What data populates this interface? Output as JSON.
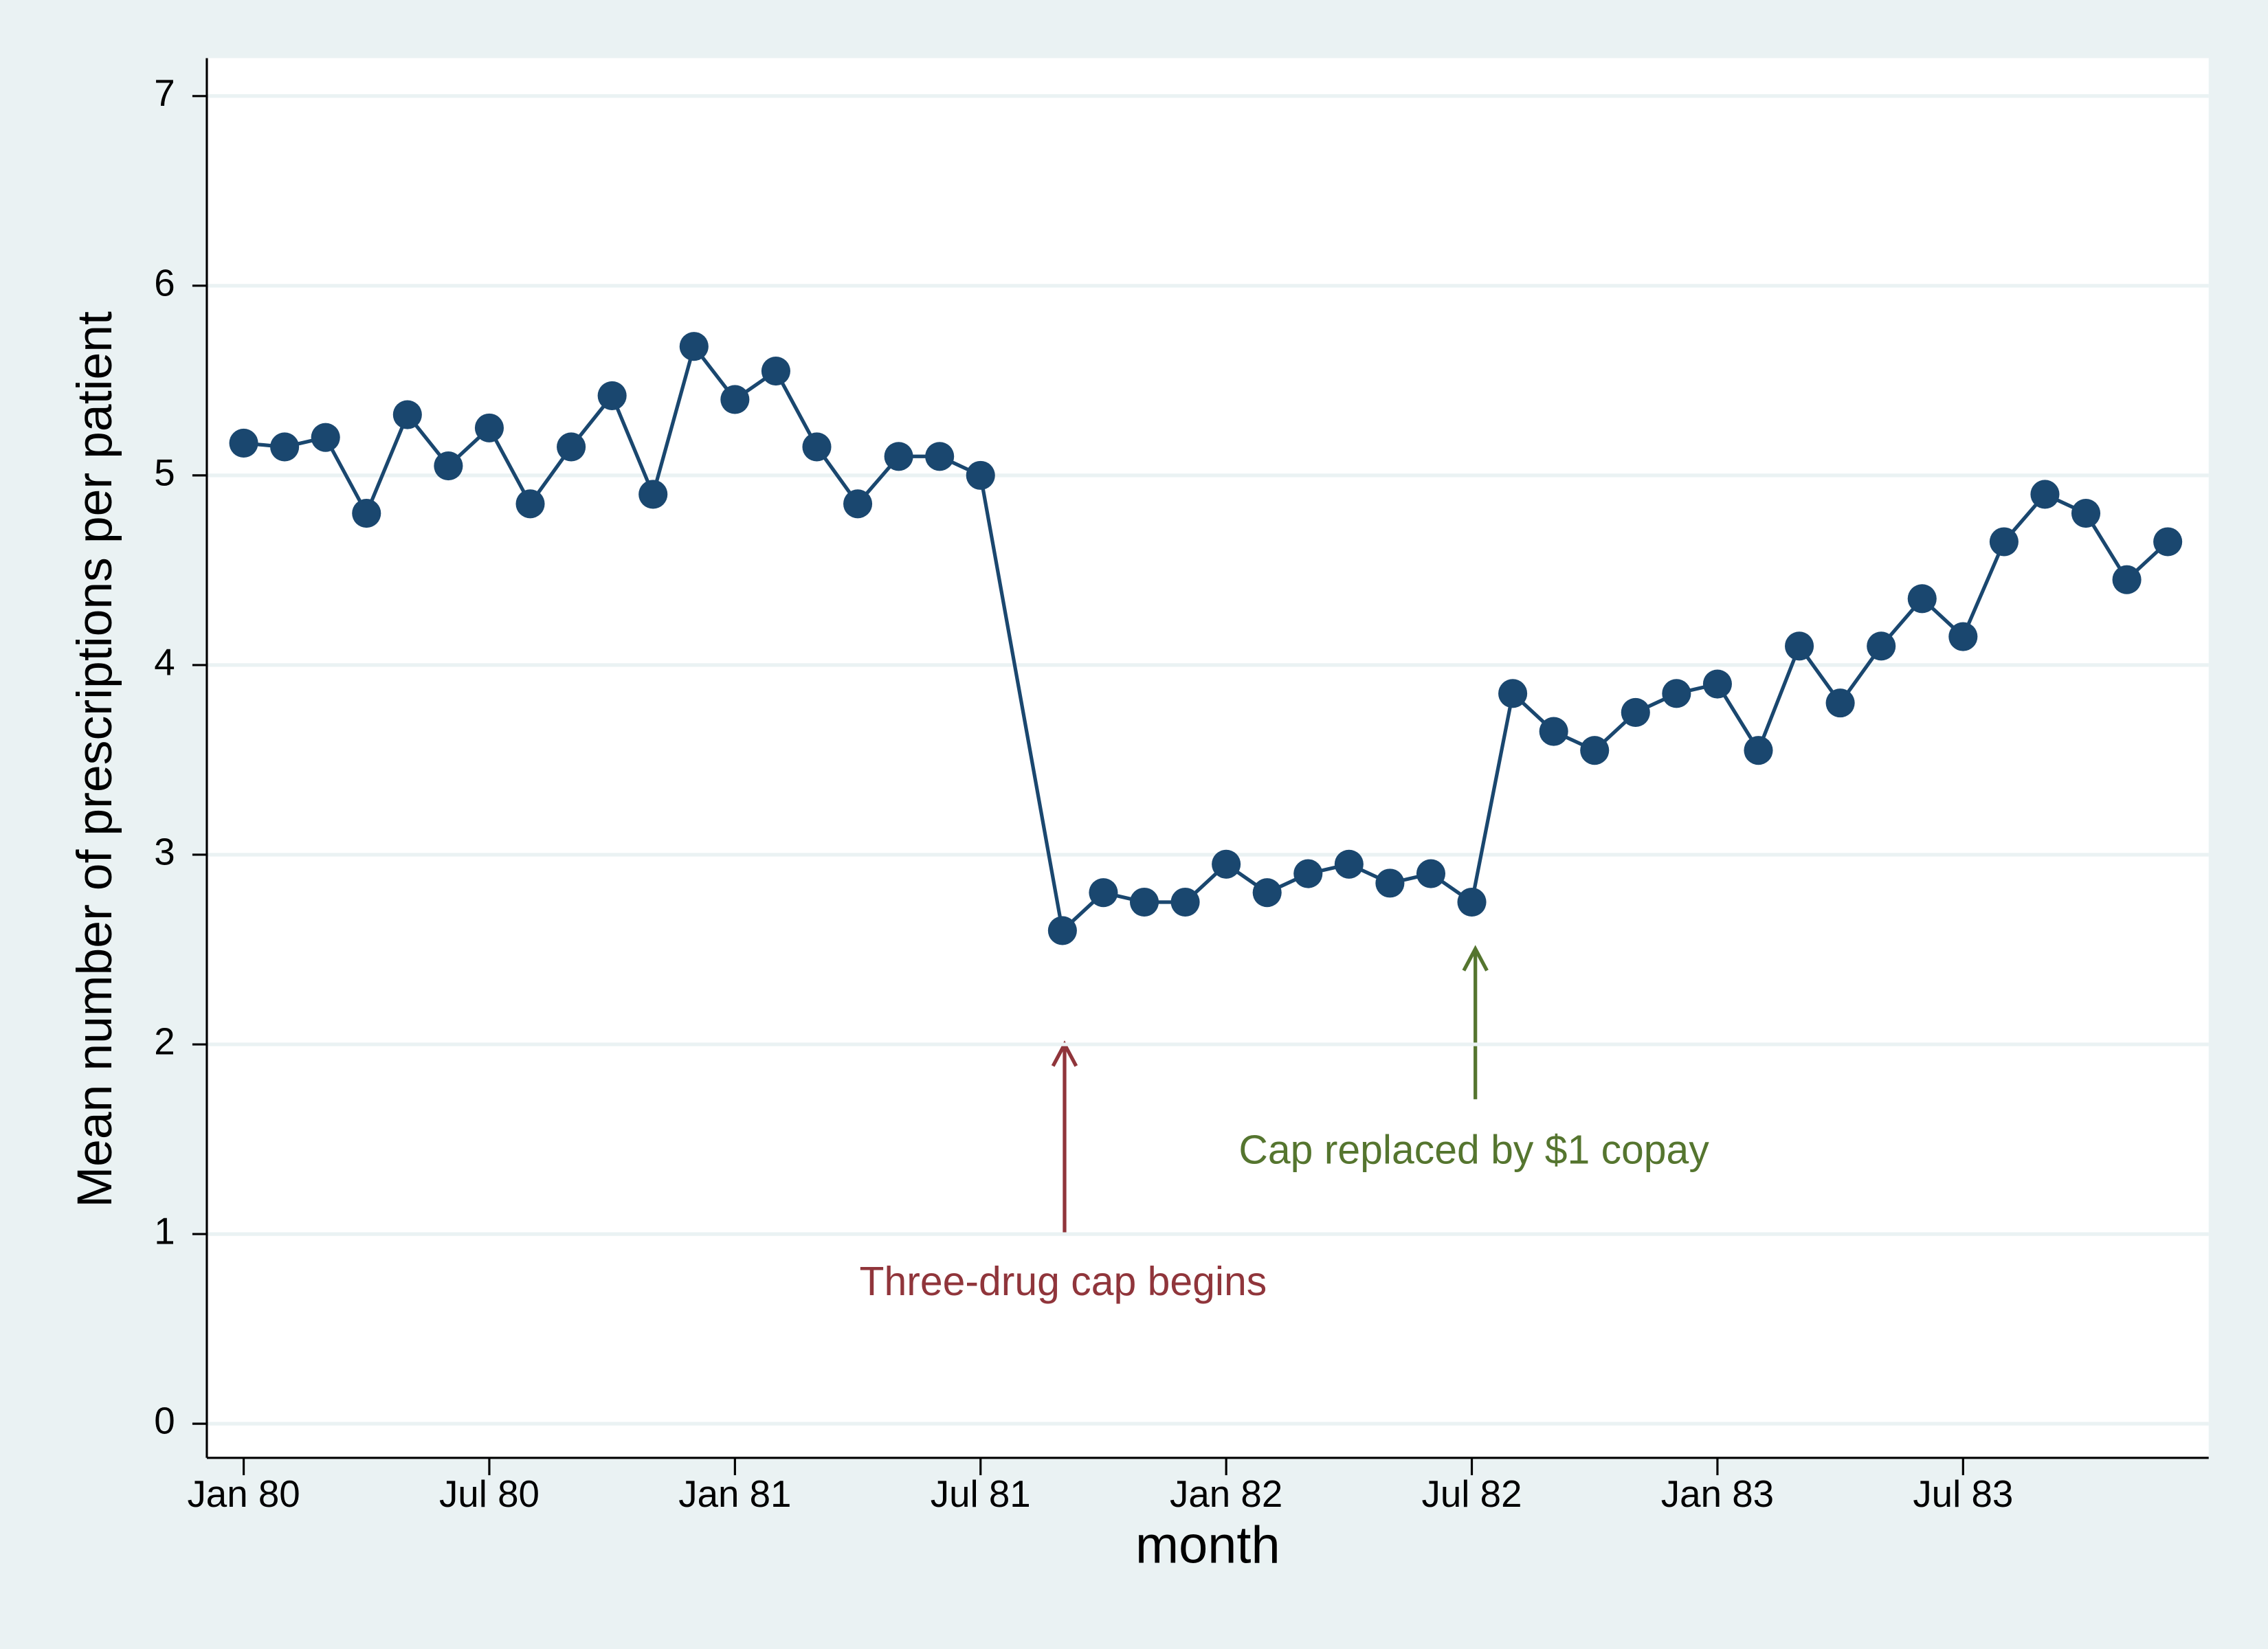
{
  "chart_data": {
    "type": "line",
    "x_label": "month",
    "y_label": "Mean number of prescriptions per patient",
    "x": [
      0,
      1,
      2,
      3,
      4,
      5,
      6,
      7,
      8,
      9,
      10,
      11,
      12,
      13,
      14,
      15,
      16,
      17,
      18,
      20,
      21,
      22,
      23,
      24,
      25,
      26,
      27,
      28,
      29,
      30,
      31,
      32,
      33,
      34,
      35,
      36,
      37,
      38,
      39,
      40,
      41,
      42,
      43,
      44,
      45,
      46,
      47
    ],
    "series": [
      {
        "color": "#1a476f",
        "values": [
          5.17,
          5.15,
          5.2,
          4.8,
          5.32,
          5.05,
          5.25,
          4.85,
          5.15,
          5.42,
          4.9,
          5.68,
          5.4,
          5.55,
          5.15,
          4.85,
          5.1,
          5.1,
          5.0,
          2.6,
          2.8,
          2.75,
          2.75,
          2.95,
          2.8,
          2.9,
          2.95,
          2.85,
          2.9,
          2.75,
          3.85,
          3.65,
          3.55,
          3.75,
          3.85,
          3.9,
          3.55,
          4.1,
          3.8,
          4.1,
          4.35,
          4.15,
          4.65,
          4.9,
          4.8,
          4.45,
          4.65
        ]
      }
    ],
    "xlim": [
      -0.9,
      48
    ],
    "xticks": [
      {
        "value": 0,
        "label": "Jan 80"
      },
      {
        "value": 6,
        "label": "Jul 80"
      },
      {
        "value": 12,
        "label": "Jan 81"
      },
      {
        "value": 18,
        "label": "Jul 81"
      },
      {
        "value": 24,
        "label": "Jan 82"
      },
      {
        "value": 30,
        "label": "Jul 82"
      },
      {
        "value": 36,
        "label": "Jan 83"
      },
      {
        "value": 42,
        "label": "Jul 83"
      }
    ],
    "ylim": [
      -0.18,
      7.2
    ],
    "yticks": [
      0,
      1,
      2,
      3,
      4,
      5,
      6,
      7
    ],
    "grid": true,
    "annotations": [
      {
        "text": "Three-drug cap begins",
        "color": "#90353b"
      },
      {
        "text": "Cap replaced by $1 copay",
        "color": "#55752f"
      }
    ]
  }
}
